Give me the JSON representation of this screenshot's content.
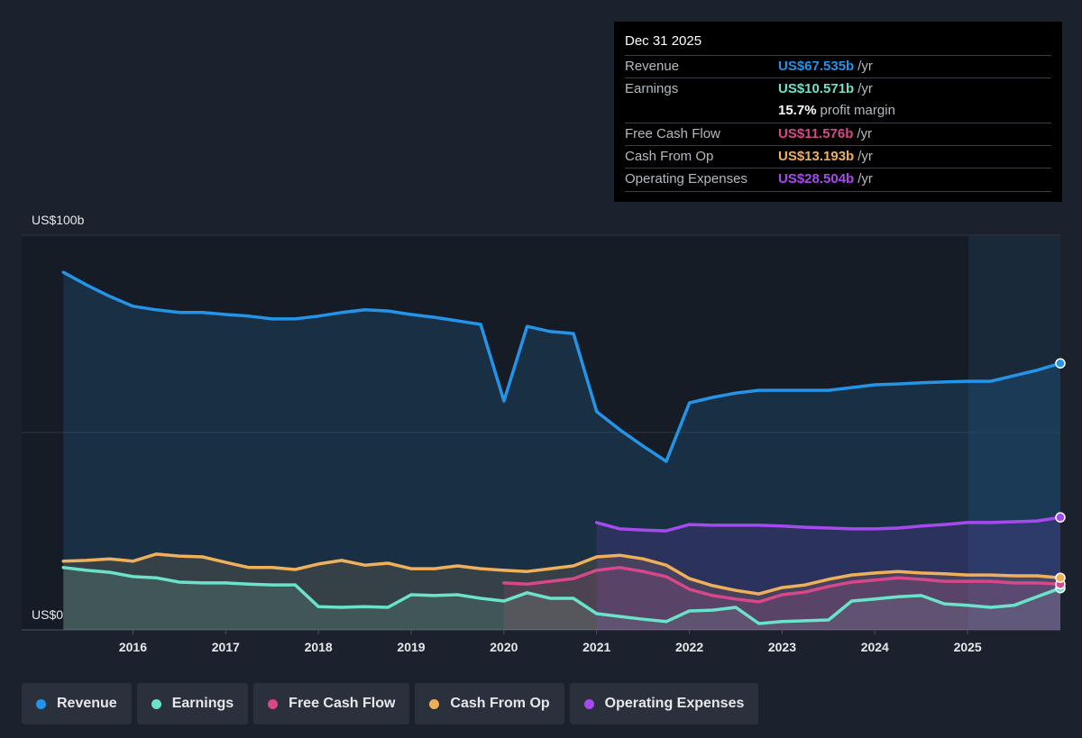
{
  "chart_data": {
    "type": "line",
    "x": [
      2015.25,
      2015.5,
      2015.75,
      2016.0,
      2016.25,
      2016.5,
      2016.75,
      2017.0,
      2017.25,
      2017.5,
      2017.75,
      2018.0,
      2018.25,
      2018.5,
      2018.75,
      2019.0,
      2019.25,
      2019.5,
      2019.75,
      2020.0,
      2020.25,
      2020.5,
      2020.75,
      2021.0,
      2021.25,
      2021.5,
      2021.75,
      2022.0,
      2022.25,
      2022.5,
      2022.75,
      2023.0,
      2023.25,
      2023.5,
      2023.75,
      2024.0,
      2024.25,
      2024.5,
      2024.75,
      2025.0,
      2025.25,
      2025.5,
      2025.75,
      2026.0
    ],
    "series": [
      {
        "name": "Revenue",
        "color": "#2394e8",
        "values": [
          90.6,
          87.4,
          84.5,
          82.0,
          81.1,
          80.4,
          80.4,
          79.9,
          79.5,
          78.8,
          78.8,
          79.5,
          80.4,
          81.1,
          80.8,
          79.9,
          79.2,
          78.3,
          77.4,
          58.0,
          76.9,
          75.6,
          75.1,
          55.3,
          50.7,
          46.6,
          42.7,
          57.5,
          58.9,
          60.0,
          60.7,
          60.7,
          60.7,
          60.7,
          61.4,
          62.1,
          62.3,
          62.6,
          62.8,
          63.0,
          63.0,
          64.4,
          65.8,
          67.535
        ]
      },
      {
        "name": "Earnings",
        "color": "#6be3cb",
        "values": [
          15.8,
          15.1,
          14.6,
          13.5,
          13.2,
          12.1,
          11.9,
          11.9,
          11.6,
          11.4,
          11.4,
          5.9,
          5.7,
          5.9,
          5.7,
          8.9,
          8.7,
          8.9,
          8.0,
          7.3,
          9.4,
          8.0,
          8.0,
          4.1,
          3.4,
          2.7,
          2.1,
          4.8,
          5.0,
          5.7,
          1.6,
          2.1,
          2.3,
          2.5,
          7.3,
          7.8,
          8.4,
          8.7,
          6.6,
          6.2,
          5.7,
          6.2,
          8.4,
          10.571
        ]
      },
      {
        "name": "Free Cash Flow",
        "color": "#d9478b",
        "values": [
          null,
          null,
          null,
          null,
          null,
          null,
          null,
          null,
          null,
          null,
          null,
          null,
          null,
          null,
          null,
          null,
          null,
          null,
          null,
          11.9,
          11.6,
          12.3,
          13.0,
          15.1,
          15.8,
          14.8,
          13.5,
          10.3,
          8.7,
          7.8,
          7.1,
          8.9,
          9.6,
          11.0,
          12.1,
          12.6,
          13.2,
          12.8,
          12.3,
          12.3,
          12.3,
          11.9,
          11.9,
          11.576
        ]
      },
      {
        "name": "Cash From Op",
        "color": "#f0b05a",
        "values": [
          17.4,
          17.6,
          18.0,
          17.4,
          19.2,
          18.7,
          18.5,
          17.1,
          15.8,
          15.8,
          15.3,
          16.7,
          17.6,
          16.4,
          16.9,
          15.5,
          15.5,
          16.2,
          15.5,
          15.1,
          14.8,
          15.5,
          16.2,
          18.5,
          18.9,
          18.0,
          16.4,
          13.0,
          11.2,
          10.0,
          9.1,
          10.7,
          11.4,
          12.8,
          13.9,
          14.4,
          14.8,
          14.4,
          14.2,
          13.9,
          13.9,
          13.7,
          13.7,
          13.193
        ]
      },
      {
        "name": "Operating Expenses",
        "color": "#a64af0",
        "values": [
          null,
          null,
          null,
          null,
          null,
          null,
          null,
          null,
          null,
          null,
          null,
          null,
          null,
          null,
          null,
          null,
          null,
          null,
          null,
          null,
          null,
          null,
          null,
          27.2,
          25.6,
          25.3,
          25.1,
          26.7,
          26.5,
          26.5,
          26.5,
          26.3,
          26.0,
          25.8,
          25.6,
          25.6,
          25.8,
          26.3,
          26.7,
          27.2,
          27.2,
          27.4,
          27.6,
          28.504
        ]
      }
    ],
    "xlim": [
      2014.8,
      2026.0
    ],
    "xticks": [
      2016,
      2017,
      2018,
      2019,
      2020,
      2021,
      2022,
      2023,
      2024,
      2025
    ],
    "ylim": [
      0,
      100
    ],
    "yticks": [
      {
        "value": 0,
        "label": "US$0"
      },
      {
        "value": 50,
        "label": null
      },
      {
        "value": 100,
        "label": "US$100b"
      }
    ],
    "grid": true,
    "legend": "bottom"
  },
  "tooltip": {
    "date": "Dec 31 2025",
    "rows": [
      {
        "label": "Revenue",
        "value": "US$67.535b",
        "unit": "/yr"
      },
      {
        "label": "Earnings",
        "value": "US$10.571b",
        "unit": "/yr"
      },
      {
        "value": "15.7%",
        "unit": "profit margin"
      },
      {
        "label": "Free Cash Flow",
        "value": "US$11.576b",
        "unit": "/yr"
      },
      {
        "label": "Cash From Op",
        "value": "US$13.193b",
        "unit": "/yr"
      },
      {
        "label": "Operating Expenses",
        "value": "US$28.504b",
        "unit": "/yr"
      }
    ]
  }
}
